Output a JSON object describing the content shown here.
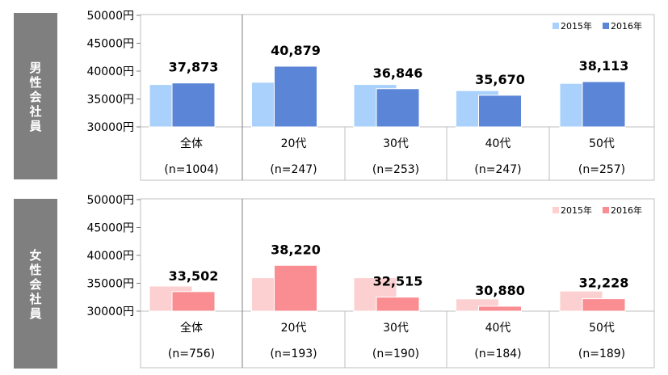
{
  "chart_data": [
    {
      "type": "bar",
      "side_label": "男性会社員",
      "categories": [
        "全体",
        "20代",
        "30代",
        "40代",
        "50代"
      ],
      "sample_sizes": [
        "(n=1004)",
        "(n=247)",
        "(n=253)",
        "(n=247)",
        "(n=257)"
      ],
      "series": [
        {
          "name": "2015年",
          "values": [
            37600,
            38000,
            37600,
            36500,
            37800
          ]
        },
        {
          "name": "2016年",
          "values": [
            37873,
            40879,
            36846,
            35670,
            38113
          ]
        }
      ],
      "data_labels": [
        "37,873",
        "40,879",
        "36,846",
        "35,670",
        "38,113"
      ],
      "ylim": [
        30000,
        50000
      ],
      "yticks": [
        "50000円",
        "45000円",
        "40000円",
        "35000円",
        "30000円"
      ],
      "legend_position": "top-right",
      "colors": {
        "2015年": "#a9d1fb",
        "2016年": "#5b85d6"
      }
    },
    {
      "type": "bar",
      "side_label": "女性会社員",
      "categories": [
        "全体",
        "20代",
        "30代",
        "40代",
        "50代"
      ],
      "sample_sizes": [
        "(n=756)",
        "(n=193)",
        "(n=190)",
        "(n=184)",
        "(n=189)"
      ],
      "series": [
        {
          "name": "2015年",
          "values": [
            34500,
            36000,
            36000,
            32200,
            33600
          ]
        },
        {
          "name": "2016年",
          "values": [
            33502,
            38220,
            32515,
            30880,
            32228
          ]
        }
      ],
      "data_labels": [
        "33,502",
        "38,220",
        "32,515",
        "30,880",
        "32,228"
      ],
      "ylim": [
        30000,
        50000
      ],
      "yticks": [
        "50000円",
        "45000円",
        "40000円",
        "35000円",
        "30000円"
      ],
      "legend_position": "top-right",
      "colors": {
        "2015年": "#fcd0d0",
        "2016年": "#fa8d92"
      }
    }
  ]
}
